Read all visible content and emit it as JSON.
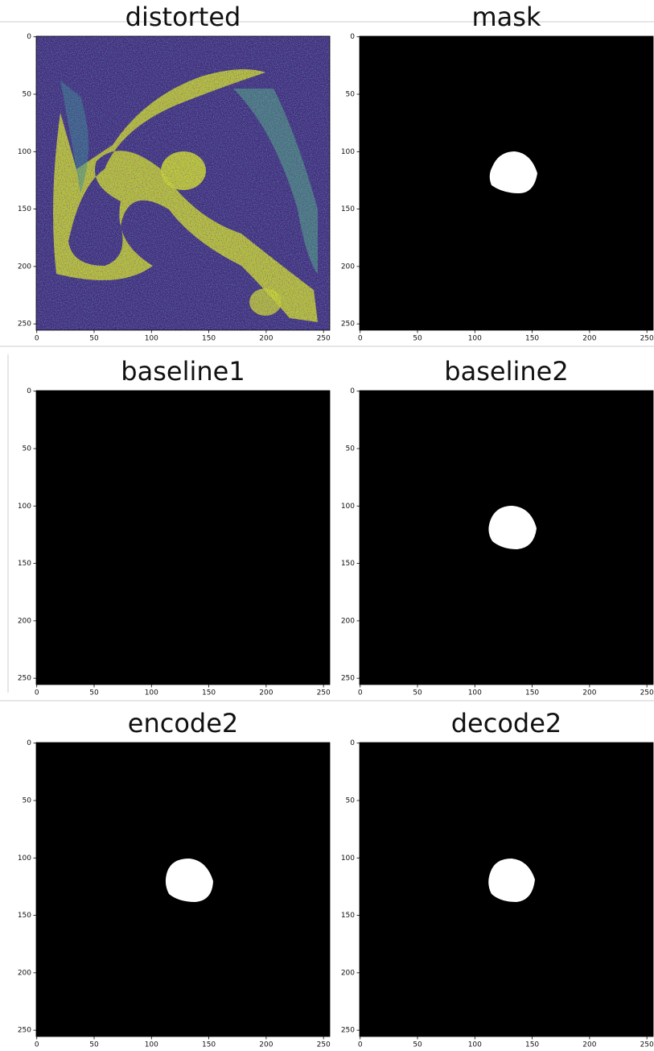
{
  "chart_data": [
    {
      "type": "image",
      "title": "distorted",
      "xlim": [
        -0.5,
        255.5
      ],
      "ylim": [
        255.5,
        -0.5
      ],
      "xticks": [
        0,
        50,
        100,
        150,
        200,
        250
      ],
      "yticks": [
        0,
        50,
        100,
        150,
        200,
        250
      ]
    },
    {
      "type": "image",
      "title": "mask",
      "xlim": [
        -0.5,
        255.5
      ],
      "ylim": [
        255.5,
        -0.5
      ],
      "xticks": [
        0,
        50,
        100,
        150,
        200,
        250
      ],
      "yticks": [
        0,
        50,
        100,
        150,
        200,
        250
      ]
    },
    {
      "type": "image",
      "title": "baseline1",
      "xlim": [
        -0.5,
        255.5
      ],
      "ylim": [
        255.5,
        -0.5
      ],
      "xticks": [
        0,
        50,
        100,
        150,
        200,
        250
      ],
      "yticks": [
        0,
        50,
        100,
        150,
        200,
        250
      ]
    },
    {
      "type": "image",
      "title": "baseline2",
      "xlim": [
        -0.5,
        255.5
      ],
      "ylim": [
        255.5,
        -0.5
      ],
      "xticks": [
        0,
        50,
        100,
        150,
        200,
        250
      ],
      "yticks": [
        0,
        50,
        100,
        150,
        200,
        250
      ]
    },
    {
      "type": "image",
      "title": "encode2",
      "xlim": [
        -0.5,
        255.5
      ],
      "ylim": [
        255.5,
        -0.5
      ],
      "xticks": [
        0,
        50,
        100,
        150,
        200,
        250
      ],
      "yticks": [
        0,
        50,
        100,
        150,
        200,
        250
      ]
    },
    {
      "type": "image",
      "title": "decode2",
      "xlim": [
        -0.5,
        255.5
      ],
      "ylim": [
        255.5,
        -0.5
      ],
      "xticks": [
        0,
        50,
        100,
        150,
        200,
        250
      ],
      "yticks": [
        0,
        50,
        100,
        150,
        200,
        250
      ]
    }
  ]
}
